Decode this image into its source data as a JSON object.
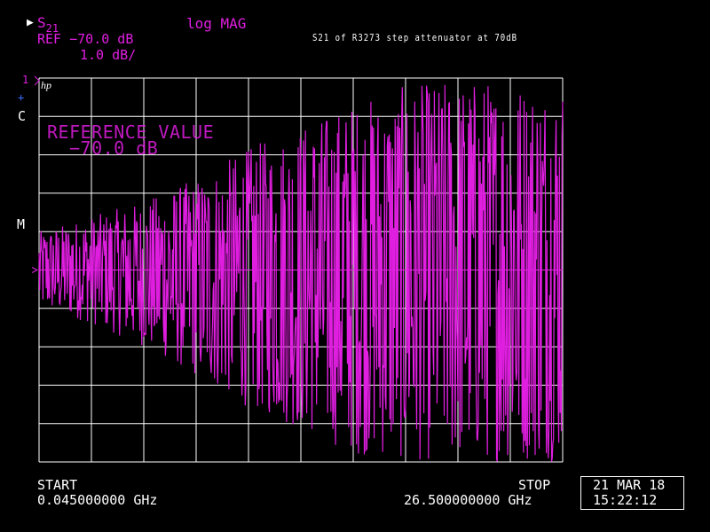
{
  "header": {
    "channel_param": "S",
    "channel_param_sub": "21",
    "channel_arrow": "▶",
    "format": "log MAG",
    "ref_level": "REF −70.0 dB",
    "scale": "1.0 dB/",
    "trace_title": "S21 of R3273 step attenuator at 70dB"
  },
  "annotations": {
    "channel_number": "1",
    "brand": "hp",
    "blue_mark": "+",
    "c_marker": "C",
    "m_marker": "M",
    "ref_value_title": "REFERENCE VALUE",
    "ref_value_num": "−70.0 dB"
  },
  "footer": {
    "start_label": "START",
    "start_value": "0.045000000 GHz",
    "stop_label": "STOP",
    "stop_value": "26.500000000 GHz",
    "date": "21 MAR 18",
    "time": "15:22:12"
  },
  "colors": {
    "background": "#000000",
    "grid": "#ffffff",
    "trace": "#e01ee0",
    "text": "#e01ee0",
    "accent": "#3a6cff"
  },
  "chart_data": {
    "type": "line",
    "title": "S21 of R3273 step attenuator at 70dB",
    "xlabel": "",
    "ylabel": "",
    "x_unit": "GHz",
    "y_unit": "dB",
    "xlim": [
      0.045,
      26.5
    ],
    "ylim": [
      -75.0,
      -65.0
    ],
    "reference_level": -70.0,
    "scale_per_div": 1.0,
    "grid": true,
    "divisions_x": 10,
    "divisions_y": 10,
    "series": [
      {
        "points": 801,
        "description_source": "dense noise trace, estimated envelope",
        "envelope_upper": [
          -69.0,
          -68.6,
          -68.2,
          -67.6,
          -66.8,
          -66.2,
          -65.6,
          -65.2,
          -65.0,
          -65.0,
          -65.0
        ],
        "envelope_lower": [
          -71.0,
          -71.4,
          -72.0,
          -72.8,
          -73.6,
          -74.2,
          -74.8,
          -75.0,
          -75.0,
          -75.0,
          -75.0
        ],
        "envelope_x": [
          0.045,
          2.69,
          5.34,
          7.98,
          10.63,
          13.27,
          15.92,
          18.56,
          21.21,
          23.85,
          26.5
        ],
        "values": []
      }
    ]
  }
}
